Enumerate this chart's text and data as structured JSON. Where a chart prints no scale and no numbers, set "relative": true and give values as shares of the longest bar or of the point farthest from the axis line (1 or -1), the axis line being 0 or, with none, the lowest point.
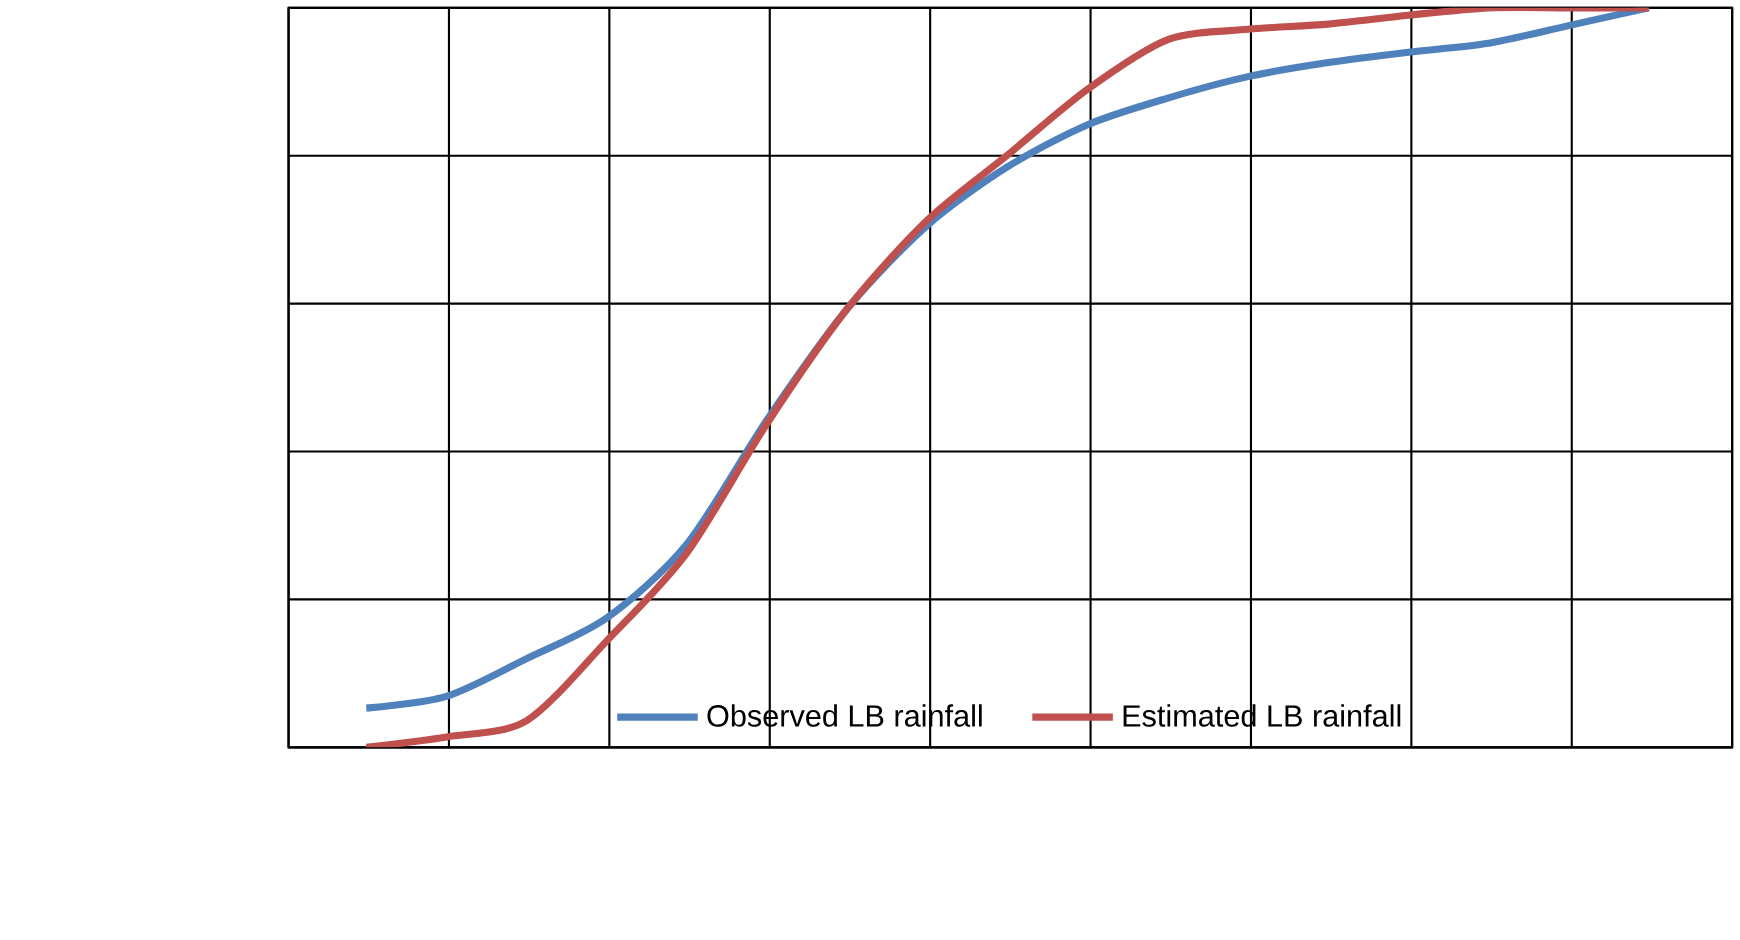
{
  "chart_data": {
    "type": "line",
    "relative": true,
    "grid": true,
    "legend": "bottom",
    "marker": "none",
    "line_style": "solid",
    "categories": [
      null,
      null,
      null,
      null,
      null,
      null,
      null,
      null,
      null,
      null,
      null,
      null,
      null,
      null,
      null,
      null,
      null
    ],
    "series": [
      {
        "name": "Observed LB rainfall",
        "color": "#4f81bd",
        "values": [
          0.053,
          0.069,
          0.12,
          0.175,
          0.275,
          0.443,
          0.593,
          0.706,
          0.785,
          0.842,
          0.878,
          0.907,
          0.926,
          0.94,
          0.952,
          0.976,
          1
        ]
      },
      {
        "name": "Estimated LB rainfall",
        "color": "#c0504d",
        "values": [
          0,
          0.014,
          0.036,
          0.144,
          0.263,
          0.438,
          0.593,
          0.713,
          0.801,
          0.89,
          0.957,
          0.971,
          0.978,
          0.99,
          1,
          1,
          1
        ]
      }
    ]
  }
}
